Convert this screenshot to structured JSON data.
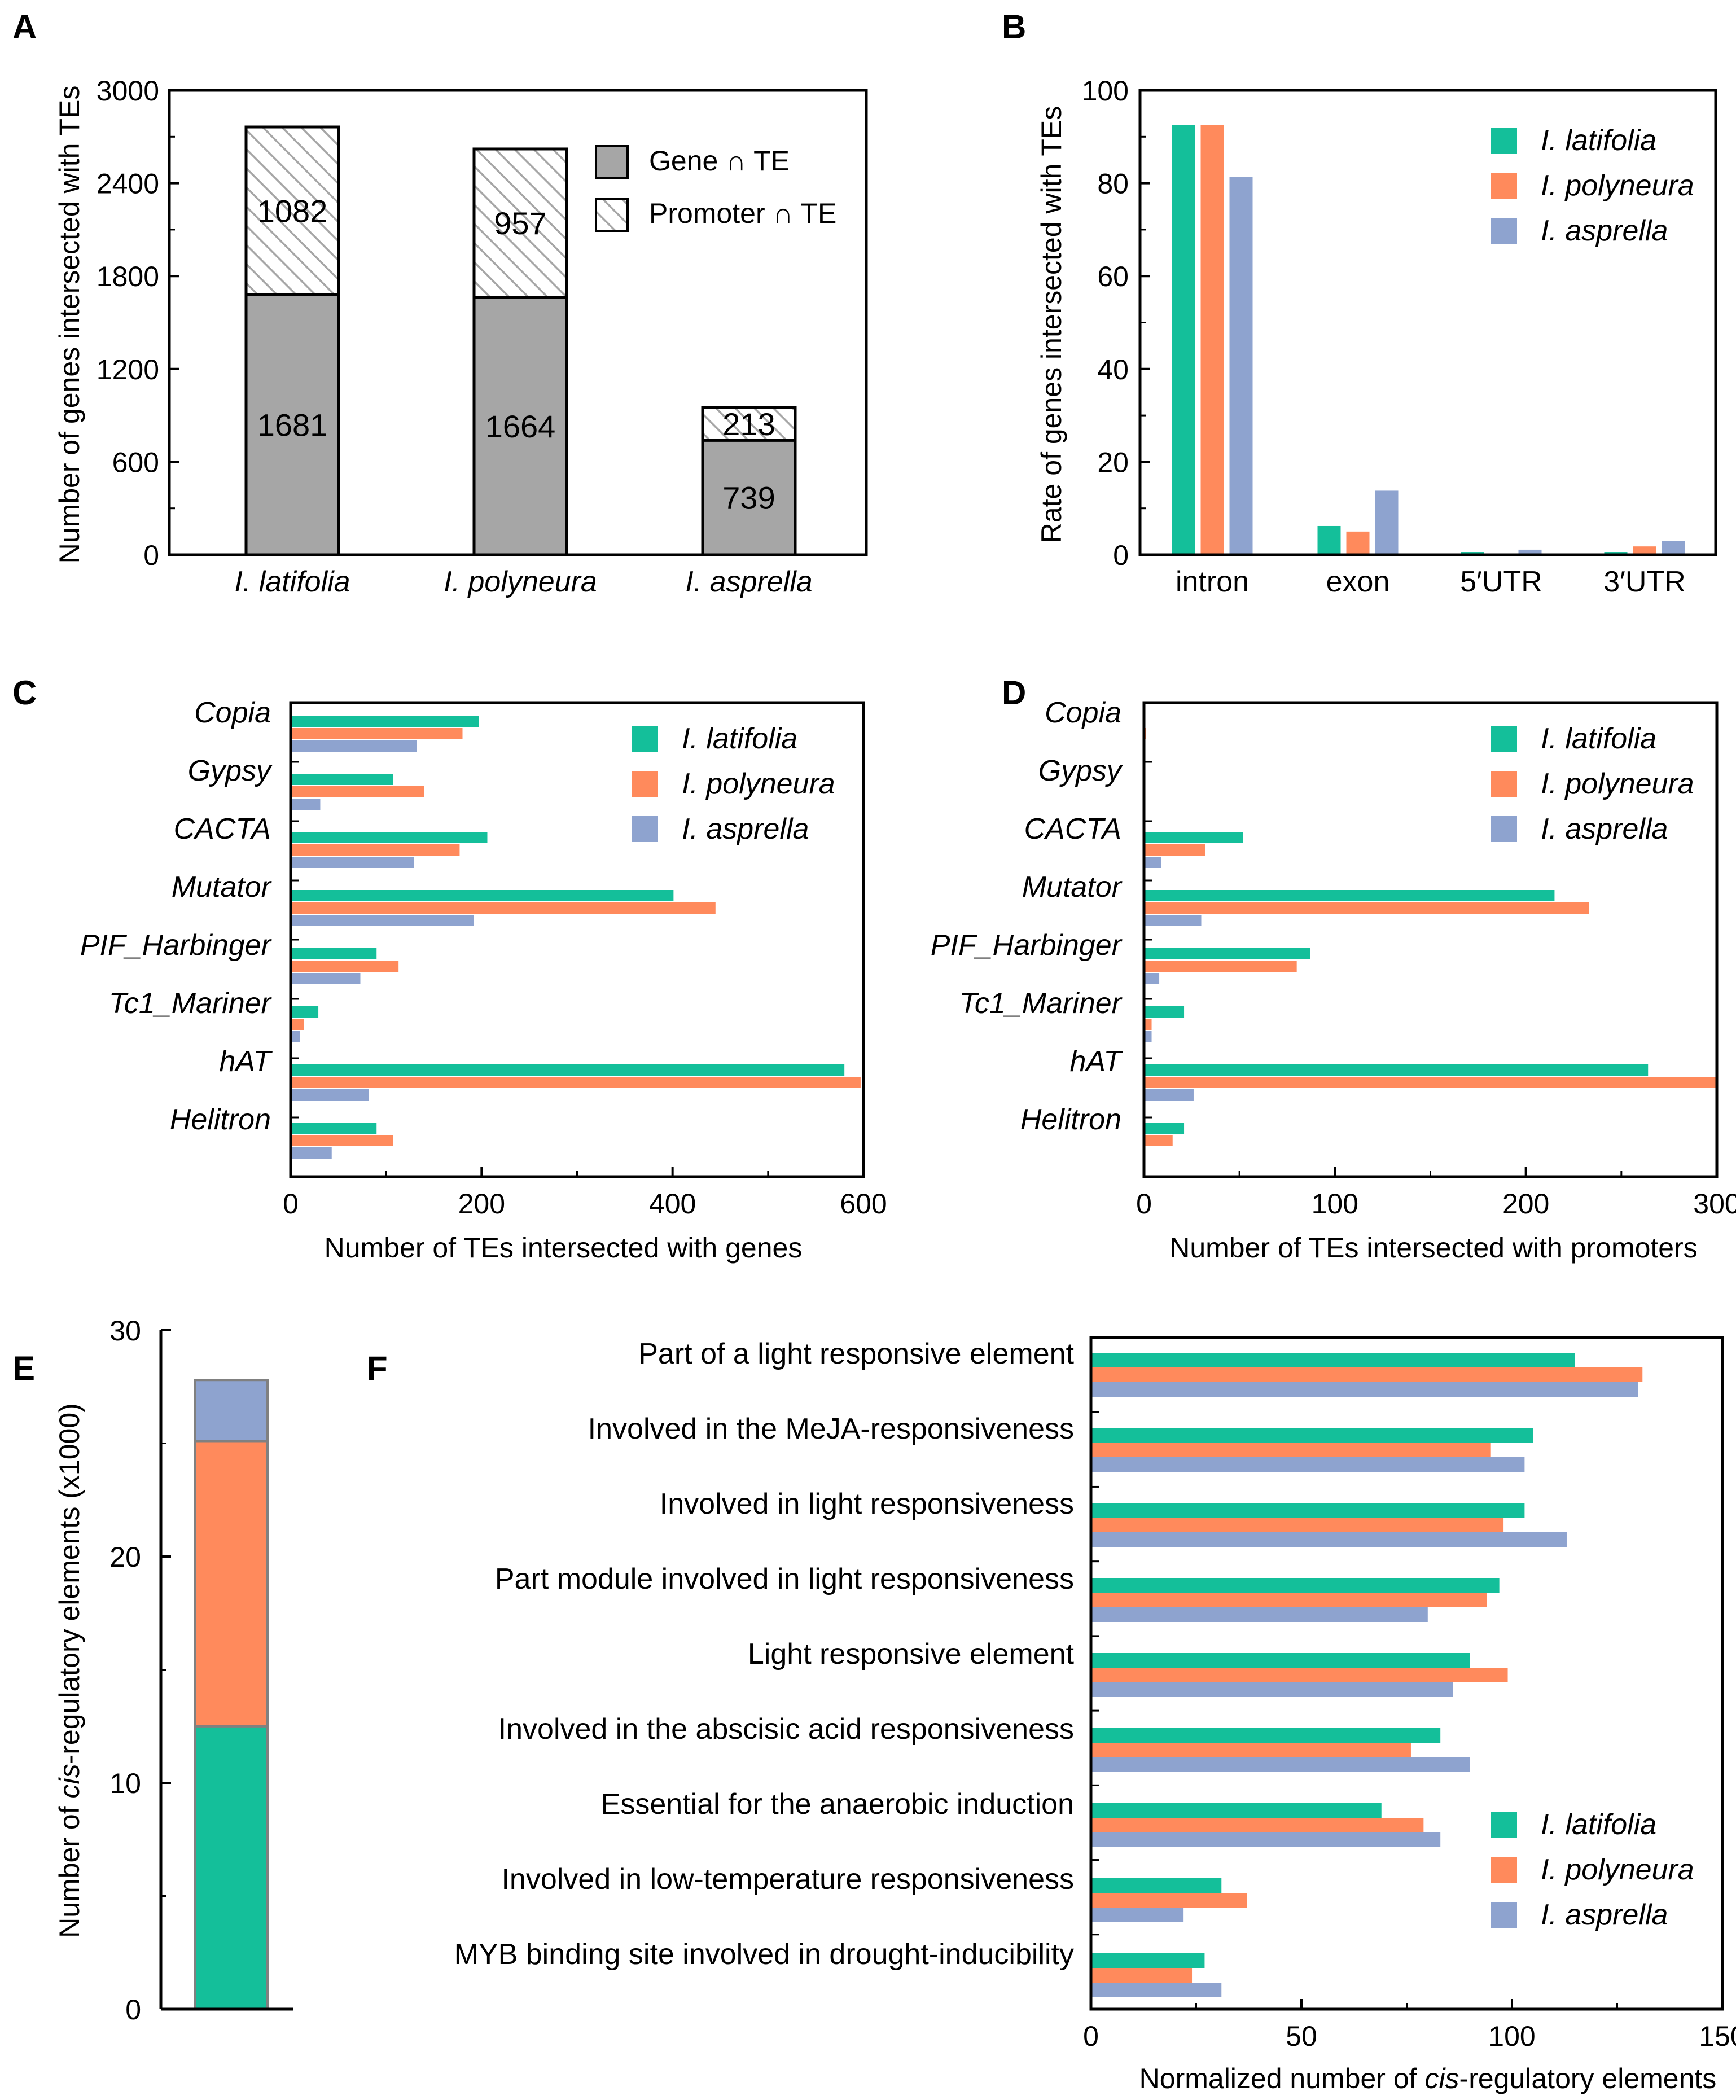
{
  "colors": {
    "latifolia": "#14bf9a",
    "polyneura": "#ff8a5c",
    "asprella": "#8ea3cf",
    "gene_te": "#a6a6a6"
  },
  "species": [
    "I. latifolia",
    "I. polyneura",
    "I. asprella"
  ],
  "chart_data": [
    {
      "panel": "A",
      "type": "bar",
      "stacked": true,
      "categories": [
        "I. latifolia",
        "I. polyneura",
        "I. asprella"
      ],
      "series": [
        {
          "name": "Gene ∩ TE",
          "values": [
            1681,
            1664,
            739
          ]
        },
        {
          "name": "Promoter ∩ TE",
          "values": [
            1082,
            957,
            213
          ]
        }
      ],
      "ylabel": "Number  of genes intersected with TEs",
      "ylim": [
        0,
        3000
      ],
      "yticks": [
        0,
        600,
        1200,
        1800,
        2400,
        3000
      ],
      "legend": "top-right"
    },
    {
      "panel": "B",
      "type": "bar",
      "categories": [
        "intron",
        "exon",
        "5′UTR",
        "3′UTR"
      ],
      "series": [
        {
          "name": "I. latifolia",
          "values": [
            92.5,
            6.2,
            0.6,
            0.6
          ]
        },
        {
          "name": "I. polyneura",
          "values": [
            92.5,
            5.0,
            0.2,
            1.8
          ]
        },
        {
          "name": "I. asprella",
          "values": [
            81.3,
            13.8,
            1.1,
            3.0
          ]
        }
      ],
      "ylabel": "Rate  of genes intersected with TEs",
      "ylim": [
        0,
        100
      ],
      "yticks": [
        0,
        20,
        40,
        60,
        80,
        100
      ],
      "legend": "top-right"
    },
    {
      "panel": "C",
      "type": "bar",
      "orientation": "horizontal",
      "categories": [
        "Copia",
        "Gypsy",
        "CACTA",
        "Mutator",
        "PIF_Harbinger",
        "Tc1_Mariner",
        "hAT",
        "Helitron"
      ],
      "series": [
        {
          "name": "I. latifolia",
          "values": [
            197,
            107,
            206,
            401,
            90,
            29,
            580,
            90
          ]
        },
        {
          "name": "I. polyneura",
          "values": [
            180,
            140,
            177,
            445,
            113,
            14,
            597,
            107
          ]
        },
        {
          "name": "I. asprella",
          "values": [
            132,
            31,
            129,
            192,
            73,
            10,
            82,
            43
          ]
        }
      ],
      "xlabel": "Number  of TEs  intersected  with genes",
      "xlim": [
        0,
        600
      ],
      "xticks": [
        0,
        200,
        400,
        600
      ],
      "legend": "top-right"
    },
    {
      "panel": "D",
      "type": "bar",
      "orientation": "horizontal",
      "categories": [
        "Copia",
        "Gypsy",
        "CACTA",
        "Mutator",
        "PIF_Harbinger",
        "Tc1_Mariner",
        "hAT",
        "Helitron"
      ],
      "series": [
        {
          "name": "I. latifolia",
          "values": [
            0,
            0,
            52,
            215,
            87,
            21,
            264,
            21
          ]
        },
        {
          "name": "I. polyneura",
          "values": [
            1,
            0,
            32,
            233,
            80,
            4,
            300,
            15
          ]
        },
        {
          "name": "I. asprella",
          "values": [
            0,
            0,
            9,
            30,
            8,
            4,
            26,
            0
          ]
        }
      ],
      "xlabel": "Number  of TEs  intersected  with promoters",
      "xlim": [
        0,
        300
      ],
      "xticks": [
        0,
        100,
        200,
        300
      ],
      "legend": "top-right"
    },
    {
      "panel": "E",
      "type": "bar",
      "stacked": true,
      "categories": [
        ""
      ],
      "series": [
        {
          "name": "I. latifolia",
          "values": [
            12.5
          ]
        },
        {
          "name": "I. polyneura",
          "values": [
            12.6
          ]
        },
        {
          "name": "I. asprella",
          "values": [
            2.7
          ]
        }
      ],
      "ylabel_pre": "Number  of ",
      "ylabel_it": "cis",
      "ylabel_post": "-regulatory elements  (x1000)",
      "ylim": [
        0,
        30
      ],
      "yticks": [
        0,
        10,
        20,
        30
      ]
    },
    {
      "panel": "F",
      "type": "bar",
      "orientation": "horizontal",
      "categories": [
        "Part of a light  responsive  element",
        "Involved   in the MeJA-responsiveness",
        "Involved   in light  responsiveness",
        "Part module  involved   in light  responsiveness",
        "Light  responsive  element",
        "Involved   in the abscisic acid responsiveness",
        "Essential  for the anaerobic induction",
        "Involved   in low-temperature   responsiveness",
        "MYB binding site involved   in drought-inducibility"
      ],
      "series": [
        {
          "name": "I. latifolia",
          "values": [
            115,
            105,
            103,
            97,
            90,
            83,
            69,
            31,
            27
          ]
        },
        {
          "name": "I. polyneura",
          "values": [
            131,
            95,
            98,
            94,
            99,
            76,
            79,
            37,
            24
          ]
        },
        {
          "name": "I. asprella",
          "values": [
            130,
            103,
            113,
            80,
            86,
            90,
            83,
            22,
            31
          ]
        }
      ],
      "xlabel_pre": "Normalized  number  of ",
      "xlabel_it": "cis",
      "xlabel_post": "-regulatory elements",
      "xlim": [
        0,
        150
      ],
      "xticks": [
        0,
        50,
        100,
        150
      ],
      "legend": "bottom-right"
    }
  ]
}
